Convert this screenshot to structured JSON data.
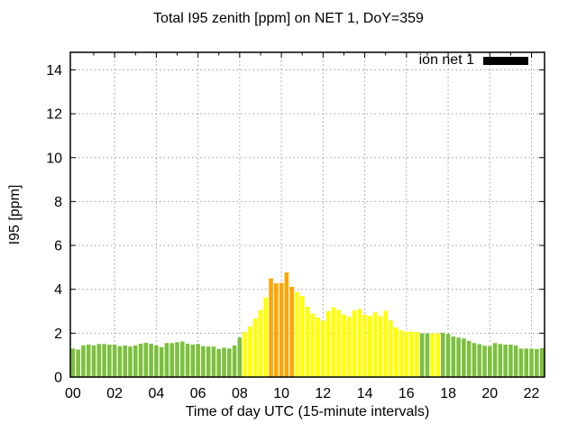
{
  "title": "Total I95 zenith [ppm] on NET 1, DoY=359",
  "legend": {
    "label": "ion net 1",
    "swatch_color": "#000000"
  },
  "colors": {
    "green": "#7cc03e",
    "yellow": "#ffff00",
    "orange": "#ffa500",
    "grid": "#9c9c9c",
    "frame": "#000000",
    "background": "#ffffff"
  },
  "chart_data": {
    "type": "bar",
    "title": "Total I95 zenith [ppm] on NET 1, DoY=359",
    "xlabel": "Time of day UTC (15-minute intervals)",
    "ylabel": "I95 [ppm]",
    "legend_position": "top-right",
    "grid": true,
    "interval_minutes": 15,
    "xlim_hours": [
      -0.125,
      22.625
    ],
    "ylim": [
      0,
      14.8
    ],
    "xticks": [
      0,
      2,
      4,
      6,
      8,
      10,
      12,
      14,
      16,
      18,
      20,
      22
    ],
    "xtick_labels": [
      "00",
      "02",
      "04",
      "06",
      "08",
      "10",
      "12",
      "14",
      "16",
      "18",
      "20",
      "22"
    ],
    "yticks": [
      0,
      2,
      4,
      6,
      8,
      10,
      12,
      14
    ],
    "series": [
      {
        "name": "ion net 1",
        "times": [
          "00:00",
          "00:15",
          "00:30",
          "00:45",
          "01:00",
          "01:15",
          "01:30",
          "01:45",
          "02:00",
          "02:15",
          "02:30",
          "02:45",
          "03:00",
          "03:15",
          "03:30",
          "03:45",
          "04:00",
          "04:15",
          "04:30",
          "04:45",
          "05:00",
          "05:15",
          "05:30",
          "05:45",
          "06:00",
          "06:15",
          "06:30",
          "06:45",
          "07:00",
          "07:15",
          "07:30",
          "07:45",
          "08:00",
          "08:15",
          "08:30",
          "08:45",
          "09:00",
          "09:15",
          "09:30",
          "09:45",
          "10:00",
          "10:15",
          "10:30",
          "10:45",
          "11:00",
          "11:15",
          "11:30",
          "11:45",
          "12:00",
          "12:15",
          "12:30",
          "12:45",
          "13:00",
          "13:15",
          "13:30",
          "13:45",
          "14:00",
          "14:15",
          "14:30",
          "14:45",
          "15:00",
          "15:15",
          "15:30",
          "15:45",
          "16:00",
          "16:15",
          "16:30",
          "16:45",
          "17:00",
          "17:15",
          "17:30",
          "17:45",
          "18:00",
          "18:15",
          "18:30",
          "18:45",
          "19:00",
          "19:15",
          "19:30",
          "19:45",
          "20:00",
          "20:15",
          "20:30",
          "20:45",
          "21:00",
          "21:15",
          "21:30",
          "21:45",
          "22:00",
          "22:15",
          "22:30"
        ],
        "values": [
          1.3,
          1.25,
          1.44,
          1.48,
          1.44,
          1.51,
          1.51,
          1.48,
          1.48,
          1.41,
          1.44,
          1.39,
          1.44,
          1.52,
          1.56,
          1.52,
          1.44,
          1.36,
          1.55,
          1.55,
          1.59,
          1.62,
          1.52,
          1.48,
          1.51,
          1.41,
          1.39,
          1.39,
          1.28,
          1.34,
          1.3,
          1.44,
          1.8,
          2.06,
          2.3,
          2.67,
          3.06,
          3.63,
          4.5,
          4.27,
          4.29,
          4.77,
          4.11,
          3.88,
          3.7,
          3.2,
          2.89,
          2.72,
          2.57,
          3.0,
          3.18,
          3.06,
          2.85,
          2.75,
          3.03,
          3.1,
          2.85,
          2.78,
          2.95,
          2.78,
          3.02,
          2.58,
          2.26,
          2.13,
          2.07,
          2.07,
          2.06,
          1.99,
          1.99,
          1.99,
          1.99,
          2.02,
          1.97,
          1.85,
          1.8,
          1.76,
          1.65,
          1.55,
          1.5,
          1.43,
          1.41,
          1.55,
          1.51,
          1.48,
          1.48,
          1.44,
          1.3,
          1.3,
          1.3,
          1.28,
          1.32
        ],
        "color_codes": "gggggggggggggggggggggggggggggggggyyyyyoooooyyyyyyyyyyyyyyyyyyyyyyyyggyygggggggggggggggggggg",
        "color_map": {
          "g": "green",
          "y": "yellow",
          "o": "orange"
        }
      }
    ]
  }
}
